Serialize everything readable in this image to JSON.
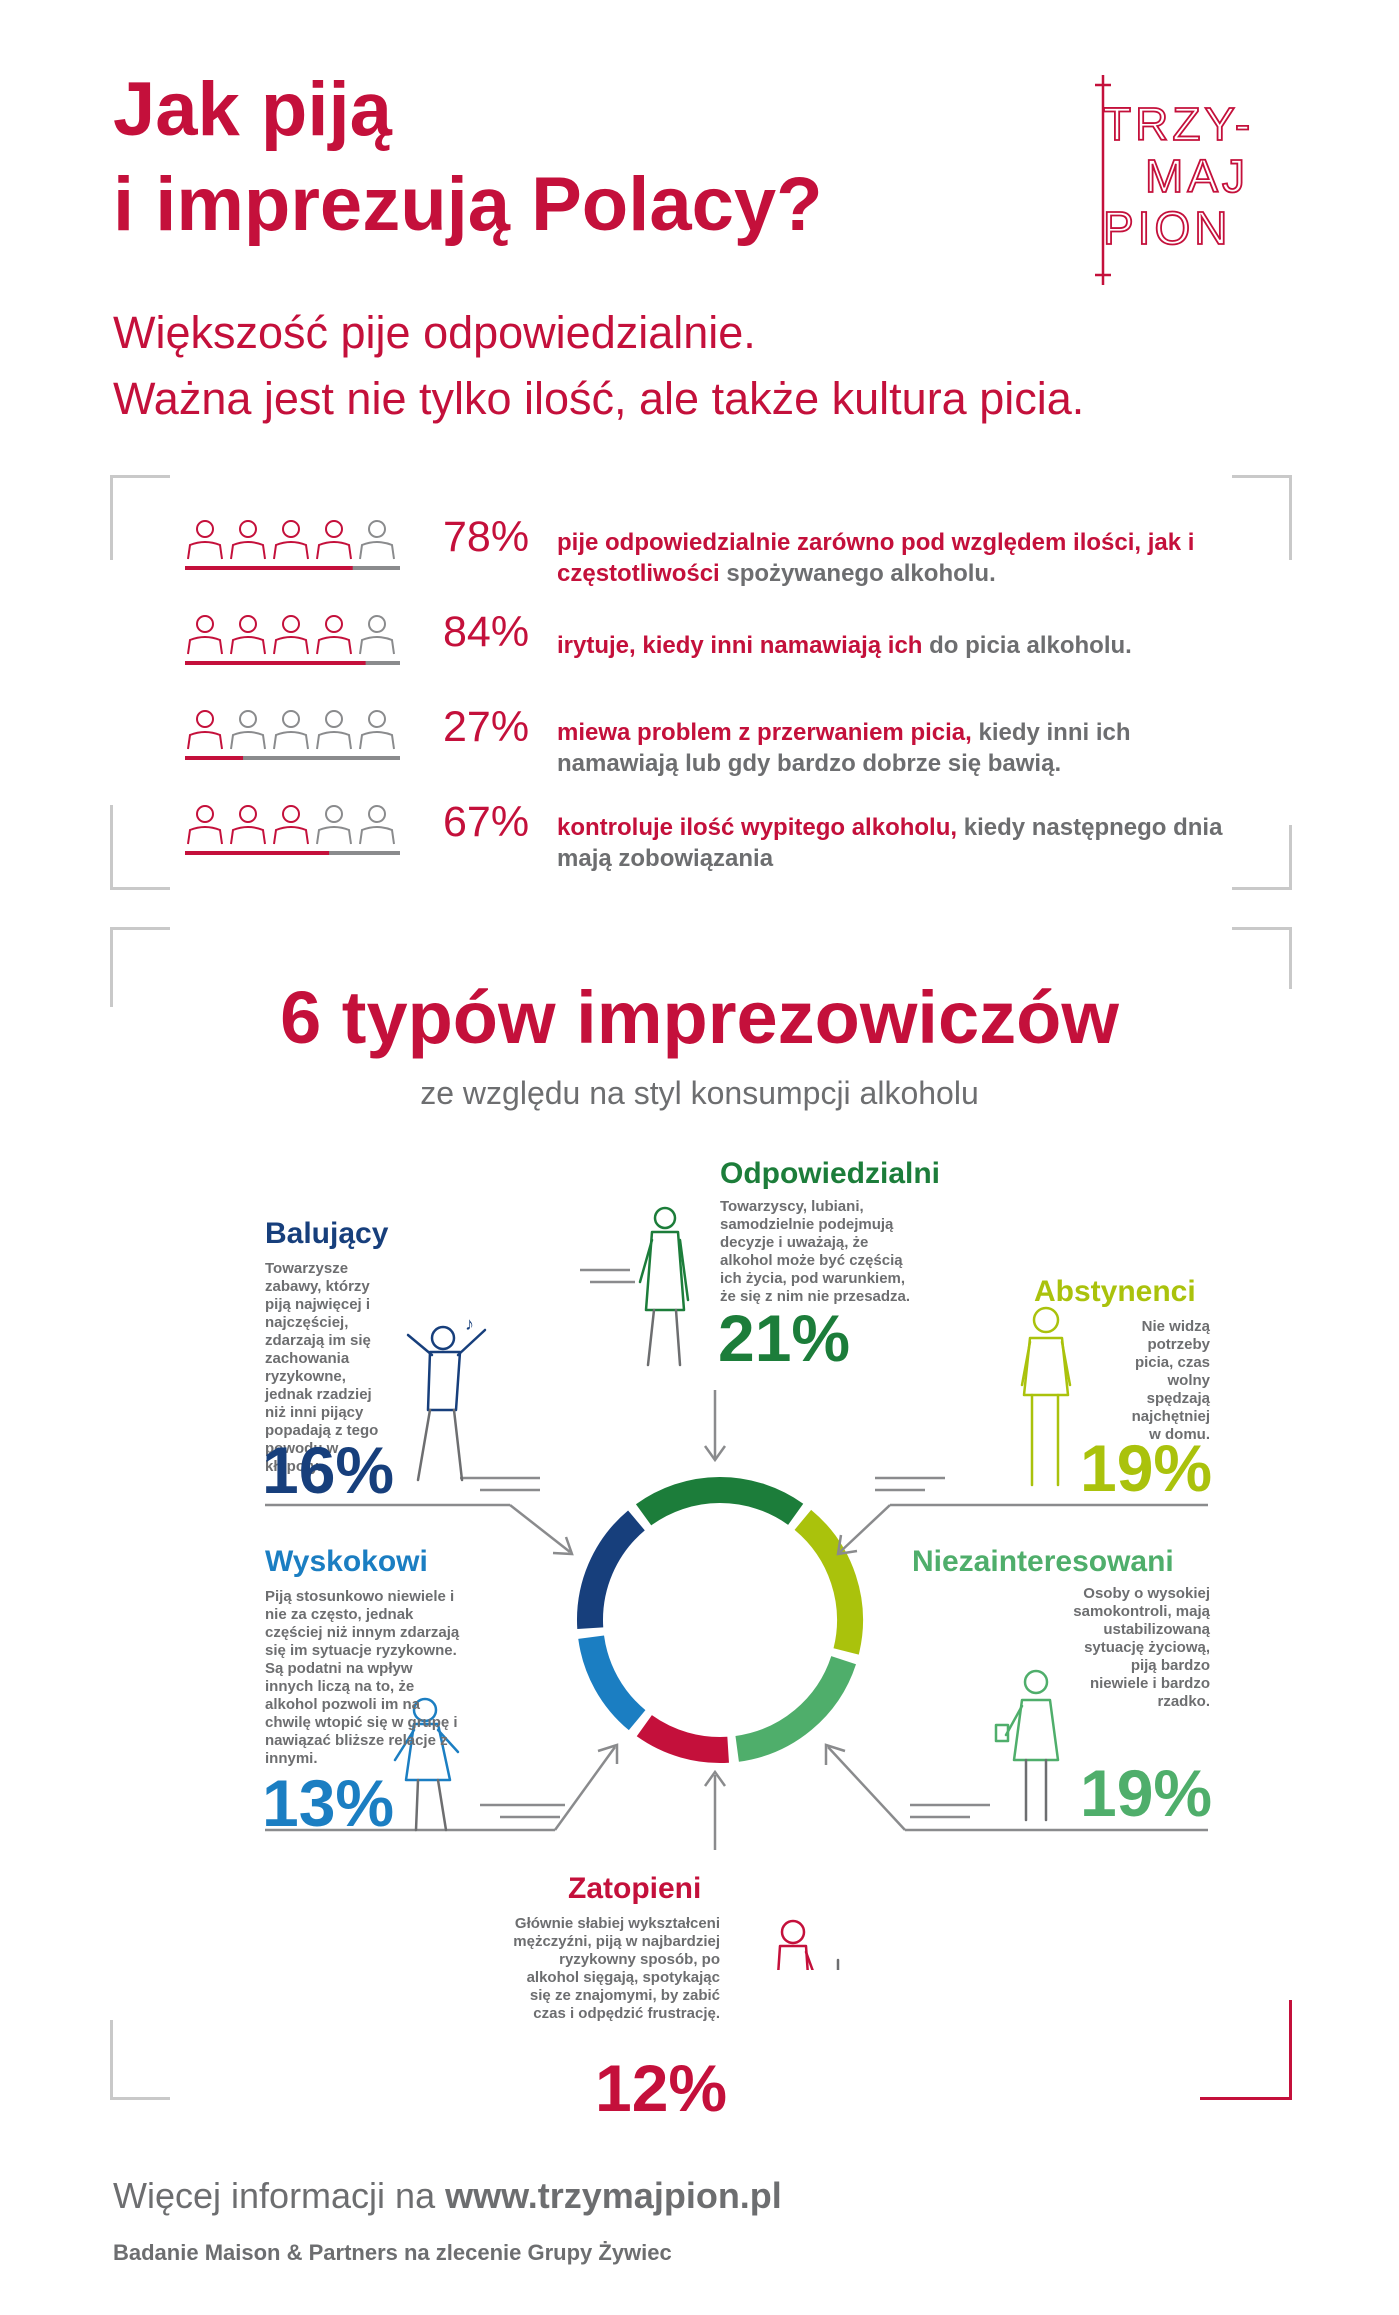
{
  "title_line1": "Jak piją",
  "title_line2": "i imprezują Polacy?",
  "subtitle_line1": "Większość pije odpowiedzialnie.",
  "subtitle_line2": "Ważna jest nie tylko ilość, ale także kultura picia.",
  "logo": {
    "line1": "TRZY-",
    "line2": "MAJ",
    "line3": "PION"
  },
  "stats": [
    {
      "percent": "78%",
      "value": 0.78,
      "highlight": "pije odpowiedzialnie zarówno pod względem ilości, jak i częstotliwości",
      "rest": " spożywanego alkoholu."
    },
    {
      "percent": "84%",
      "value": 0.84,
      "highlight": "irytuje, kiedy inni namawiają ich",
      "rest": " do picia alkoholu."
    },
    {
      "percent": "27%",
      "value": 0.27,
      "highlight": "miewa problem z przerwaniem picia,",
      "rest": " kiedy inni ich namawiają lub gdy bardzo dobrze się bawią."
    },
    {
      "percent": "67%",
      "value": 0.67,
      "highlight": "kontroluje ilość wypitego alkoholu,",
      "rest": " kiedy następnego dnia mają zobowiązania"
    }
  ],
  "section2": {
    "title": "6 typów imprezowiczów",
    "subtitle": "ze względu na styl konsumpcji alkoholu"
  },
  "types": {
    "odpowiedzialni": {
      "name": "Odpowiedzialni",
      "percent": "21%",
      "value": 21,
      "color": "#1c7d3a",
      "desc": "Towarzyscy, lubiani, samodzielnie podejmują decyzje i uważają, że alkohol może być częścią ich życia, pod warunkiem, że się z nim nie przesadza."
    },
    "abstynenci": {
      "name": "Abstynenci",
      "percent": "19%",
      "value": 19,
      "color": "#aac20c",
      "desc": "Nie widzą potrzeby picia, czas wolny spędzają najchętniej w domu."
    },
    "niezainteresowani": {
      "name": "Niezainteresowani",
      "percent": "19%",
      "value": 19,
      "color": "#4fae6b",
      "desc": "Osoby o wysokiej samokontroli, mają ustabilizowaną sytuację życiową, piją bardzo niewiele i bardzo rzadko."
    },
    "zatopieni": {
      "name": "Zatopieni",
      "percent": "12%",
      "value": 12,
      "color": "#c4103b",
      "desc": "Głównie słabiej wykształceni mężczyźni, piją w najbardziej ryzykowny sposób, po alkohol sięgają, spotykając się ze znajomymi, by zabić czas i odpędzić frustrację."
    },
    "wyskokowi": {
      "name": "Wyskokowi",
      "percent": "13%",
      "value": 13,
      "color": "#1b7ec2",
      "desc": "Piją stosunkowo niewiele i nie za często, jednak częściej niż innym zdarzają się im sytuacje ryzykowne. Są podatni na wpływ innych liczą na to, że alkohol pozwoli im na chwilę wtopić się w grupę i nawiązać bliższe relacje z innymi."
    },
    "balujacy": {
      "name": "Balujący",
      "percent": "16%",
      "value": 16,
      "color": "#173f7c",
      "desc": "Towarzysze zabawy, którzy piją najwięcej i najczęściej, zdarzają im się zachowania ryzykowne, jednak rzadziej niż inni pijący popadają z tego powodu w kłopoty."
    }
  },
  "donut_order": [
    "odpowiedzialni",
    "abstynenci",
    "niezainteresowani",
    "zatopieni",
    "wyskokowi",
    "balujacy"
  ],
  "footer": {
    "prefix": "Więcej informacji na ",
    "url": "www.trzymajpion.pl",
    "source": "Badanie Maison & Partners na zlecenie Grupy Żywiec"
  }
}
